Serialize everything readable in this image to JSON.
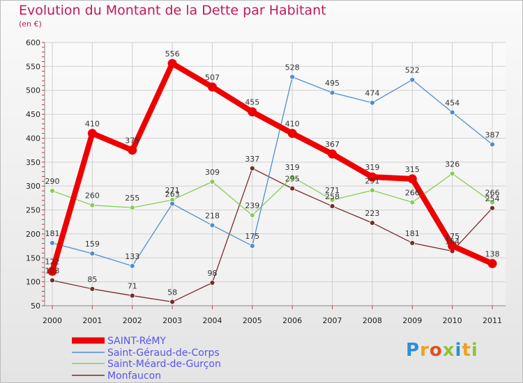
{
  "brand": {
    "logo_text": "Proxiti"
  },
  "chart_data": {
    "type": "line",
    "title": "Evolution du Montant de la Dette par Habitant",
    "subtitle": "(en €)",
    "categories": [
      "2000",
      "2001",
      "2002",
      "2003",
      "2004",
      "2005",
      "2006",
      "2007",
      "2008",
      "2009",
      "2010",
      "2011"
    ],
    "ylim": [
      50,
      600
    ],
    "yticks": [
      50,
      100,
      150,
      200,
      250,
      300,
      350,
      400,
      450,
      500,
      550,
      600
    ],
    "grid": true,
    "legend_position": "bottom-left",
    "series": [
      {
        "name": "SAINT-RéMY",
        "color": "#ee0000",
        "values": [
          122,
          410,
          375,
          556,
          507,
          455,
          410,
          367,
          319,
          315,
          175,
          138
        ],
        "labels": [
          "122",
          "410",
          "375",
          "556",
          "507",
          "455",
          "410",
          "367",
          "319",
          "315",
          "175",
          "138"
        ]
      },
      {
        "name": "Saint-Géraud-de-Corps",
        "color": "#4f8fcf",
        "values": [
          181,
          159,
          133,
          263,
          218,
          175,
          528,
          495,
          474,
          522,
          454,
          387
        ],
        "labels": [
          "181",
          "159",
          "133",
          "263",
          "218",
          "175",
          "528",
          "495",
          "474",
          "522",
          "454",
          "387"
        ]
      },
      {
        "name": "Saint-Méard-de-Gurçon",
        "color": "#88cc55",
        "values": [
          290,
          260,
          255,
          271,
          309,
          239,
          319,
          271,
          291,
          266,
          326,
          266
        ],
        "labels": [
          "290",
          "260",
          "255",
          "271",
          "309",
          "239",
          "319",
          "271",
          "291",
          "266",
          "326",
          "266"
        ]
      },
      {
        "name": "Monfaucon",
        "color": "#7a2a2a",
        "values": [
          103,
          85,
          71,
          58,
          98,
          337,
          295,
          258,
          223,
          181,
          164,
          254
        ],
        "labels": [
          "103",
          "85",
          "71",
          "58",
          "98",
          "337",
          "295",
          "258",
          "223",
          "181",
          "164",
          "254"
        ]
      }
    ]
  }
}
